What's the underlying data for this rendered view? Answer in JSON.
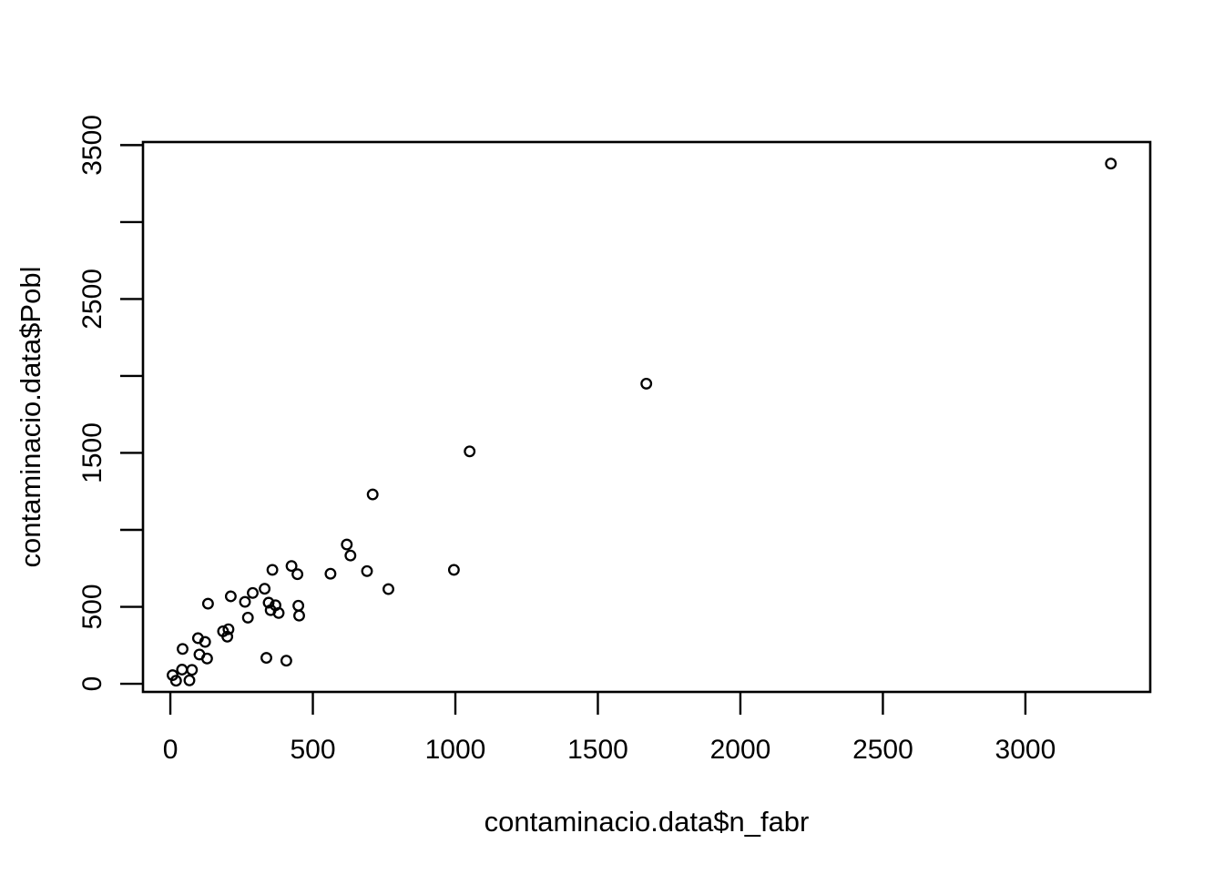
{
  "figure": {
    "background": "#ffffff",
    "foreground": "#000000"
  },
  "chart_data": {
    "type": "scatter",
    "title": "",
    "xlabel": "contaminacio.data$n_fabr",
    "ylabel": "contaminacio.data$Pobl",
    "marker": "open-circle",
    "marker_color": "#000000",
    "grid": false,
    "legend_position": "none",
    "xlim": [
      -96,
      3438
    ],
    "ylim": [
      -53,
      3520
    ],
    "x_ticks": {
      "values": [
        0,
        500,
        1000,
        1500,
        2000,
        2500,
        3000
      ],
      "labels": [
        "0",
        "500",
        "1000",
        "1500",
        "2000",
        "2500",
        "3000"
      ]
    },
    "y_ticks": {
      "values": [
        0,
        500,
        1000,
        1500,
        2000,
        2500,
        3000,
        3500
      ],
      "labels": [
        "0",
        "500",
        "",
        "1500",
        "",
        "2500",
        "",
        "3500"
      ]
    },
    "points": [
      [
        3300,
        3380
      ],
      [
        1670,
        1950
      ],
      [
        1050,
        1510
      ],
      [
        710,
        1230
      ],
      [
        995,
        740
      ],
      [
        765,
        615
      ],
      [
        690,
        732
      ],
      [
        619,
        905
      ],
      [
        632,
        833
      ],
      [
        562,
        715
      ],
      [
        425,
        765
      ],
      [
        446,
        712
      ],
      [
        358,
        740
      ],
      [
        331,
        617
      ],
      [
        345,
        527
      ],
      [
        369,
        510
      ],
      [
        352,
        478
      ],
      [
        380,
        460
      ],
      [
        449,
        507
      ],
      [
        452,
        443
      ],
      [
        272,
        430
      ],
      [
        212,
        568
      ],
      [
        132,
        520
      ],
      [
        262,
        532
      ],
      [
        289,
        590
      ],
      [
        185,
        341
      ],
      [
        204,
        354
      ],
      [
        200,
        306
      ],
      [
        97,
        296
      ],
      [
        122,
        272
      ],
      [
        43,
        226
      ],
      [
        102,
        190
      ],
      [
        129,
        164
      ],
      [
        337,
        168
      ],
      [
        407,
        150
      ],
      [
        41,
        92
      ],
      [
        76,
        90
      ],
      [
        20,
        20
      ],
      [
        67,
        22
      ],
      [
        8,
        56
      ]
    ]
  }
}
